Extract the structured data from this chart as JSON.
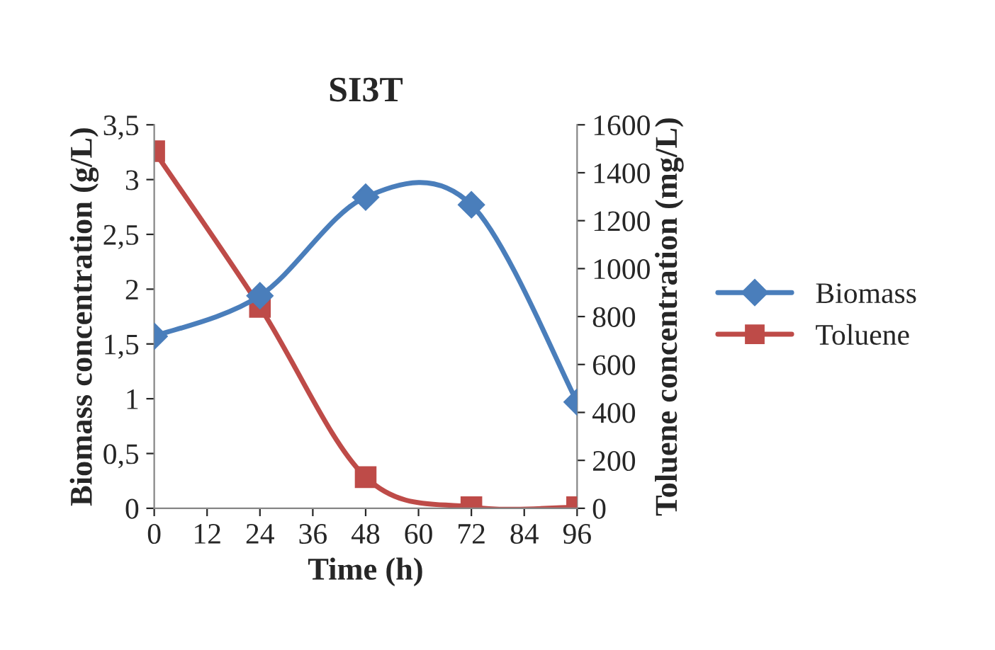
{
  "chart_data": {
    "type": "line",
    "title": "SI3T",
    "xlabel": "Time (h)",
    "ylabel": "Biomass concentration (g/L)",
    "y2label": "Toluene concentration (mg/L)",
    "x": [
      0,
      24,
      48,
      72,
      96
    ],
    "series": [
      {
        "name": "Biomass",
        "color": "#4a7ebb",
        "marker": "diamond",
        "values": [
          1.57,
          1.94,
          2.84,
          2.77,
          0.97
        ]
      },
      {
        "name": "Toluene",
        "color": "#be4b48",
        "marker": "square",
        "axis": "y2",
        "values": [
          1490,
          840,
          130,
          5,
          5
        ]
      }
    ],
    "xlim": [
      0,
      96
    ],
    "xticks": [
      0,
      12,
      24,
      36,
      48,
      60,
      72,
      84,
      96
    ],
    "ylim": [
      0,
      3.5
    ],
    "yticks": [
      0,
      {
        "value": 0.5,
        "label": "0,5"
      },
      1,
      {
        "value": 1.5,
        "label": "1,5"
      },
      2,
      {
        "value": 2.5,
        "label": "2,5"
      },
      3,
      {
        "value": 3.5,
        "label": "3,5"
      }
    ],
    "y2lim": [
      0,
      1600
    ],
    "y2ticks": [
      0,
      200,
      400,
      600,
      800,
      1000,
      1200,
      1400,
      1600
    ],
    "grid": false,
    "legend": "right",
    "line_style": "solid"
  }
}
